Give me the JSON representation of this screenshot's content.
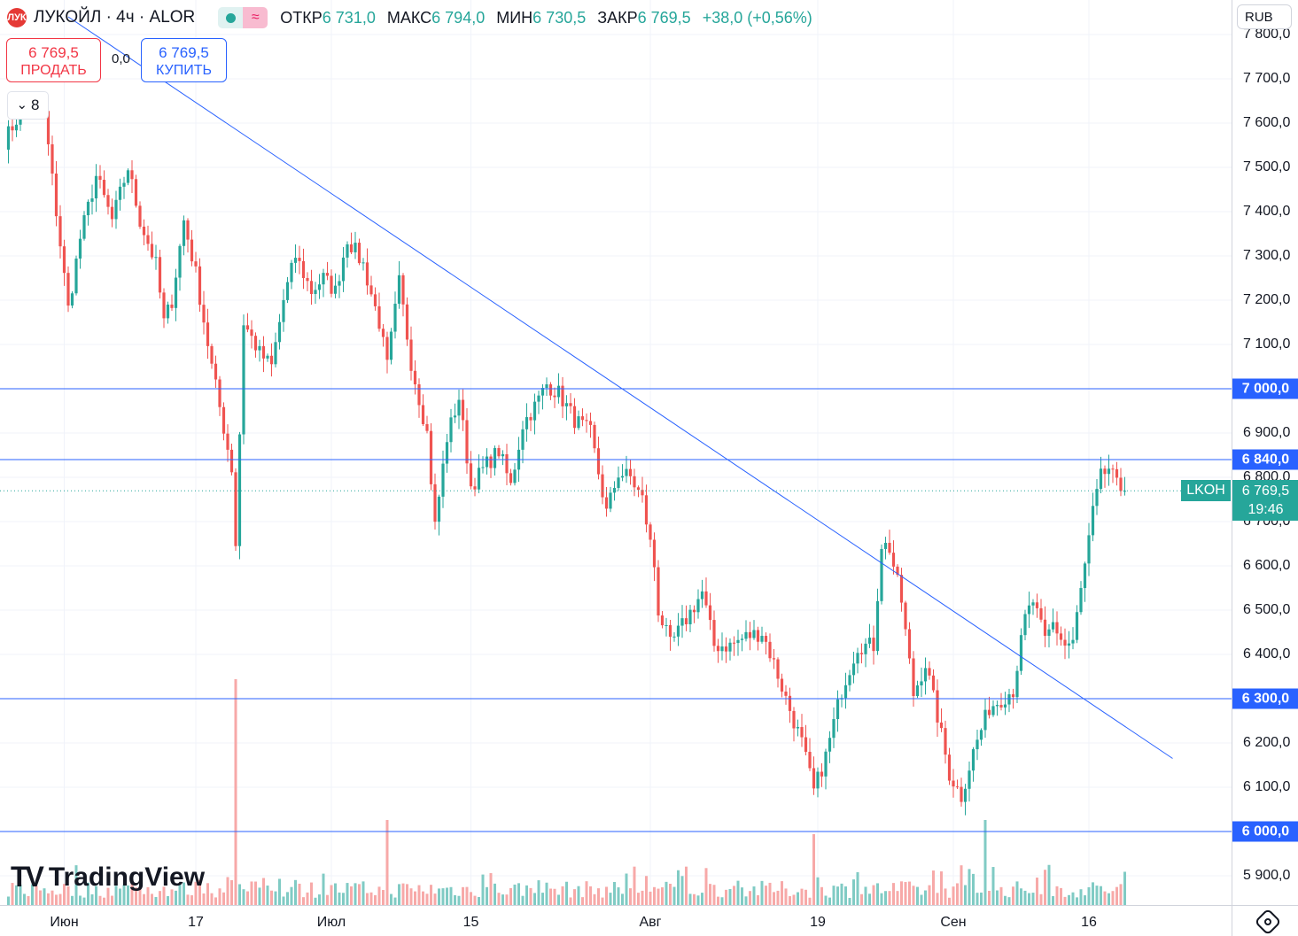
{
  "header": {
    "logo_text": "ЛУК",
    "title": "ЛУКОЙЛ · 4ч · ALOR",
    "live_icon": "green-dot-icon",
    "indicator_icon": "approx-wave-icon",
    "indicator_glyph": "≈",
    "ohlc": [
      {
        "key": "ОТКР",
        "value": "6 731,0"
      },
      {
        "key": "МАКС",
        "value": "6 794,0"
      },
      {
        "key": "МИН",
        "value": "6 730,5"
      },
      {
        "key": "ЗАКР",
        "value": "6 769,5"
      }
    ],
    "change": "+38,0 (+0,56%)"
  },
  "trade": {
    "sell_price": "6 769,5",
    "sell_label": "ПРОДАТЬ",
    "spread": "0,0",
    "buy_price": "6 769,5",
    "buy_label": "КУПИТЬ"
  },
  "collapse": {
    "icon": "chevron-down-icon",
    "glyph": "⌄",
    "count": "8"
  },
  "currency": "RUB",
  "brand": "TradingView",
  "colors": {
    "up": "#26a69a",
    "down": "#ef5350",
    "up_vol": "#80cbc4",
    "down_vol": "#f7a9a8",
    "level": "#2962ff",
    "grid": "#f0f3fa"
  },
  "chart_data": {
    "type": "candlestick",
    "symbol": "LKOH",
    "last_price": "6 769,5",
    "countdown": "19:46",
    "ylim": [
      5860,
      7900
    ],
    "y_ticks": [
      {
        "value": 7800,
        "label": "7 800,0"
      },
      {
        "value": 7700,
        "label": "7 700,0"
      },
      {
        "value": 7600,
        "label": "7 600,0"
      },
      {
        "value": 7500,
        "label": "7 500,0"
      },
      {
        "value": 7400,
        "label": "7 400,0"
      },
      {
        "value": 7300,
        "label": "7 300,0"
      },
      {
        "value": 7200,
        "label": "7 200,0"
      },
      {
        "value": 7100,
        "label": "7 100,0"
      },
      {
        "value": 7000,
        "label": "7 000,0"
      },
      {
        "value": 6900,
        "label": "6 900,0"
      },
      {
        "value": 6800,
        "label": "6 800,0"
      },
      {
        "value": 6700,
        "label": "6 700,0"
      },
      {
        "value": 6600,
        "label": "6 600,0"
      },
      {
        "value": 6500,
        "label": "6 500,0"
      },
      {
        "value": 6400,
        "label": "6 400,0"
      },
      {
        "value": 6300,
        "label": "6 300,0"
      },
      {
        "value": 6200,
        "label": "6 200,0"
      },
      {
        "value": 6100,
        "label": "6 100,0"
      },
      {
        "value": 6000,
        "label": "6 000,0"
      },
      {
        "value": 5900,
        "label": "5 900,0"
      }
    ],
    "x_ticks": [
      {
        "bar": 15,
        "label": "Июн"
      },
      {
        "bar": 48,
        "label": "17"
      },
      {
        "bar": 82,
        "label": "Июл"
      },
      {
        "bar": 117,
        "label": "15"
      },
      {
        "bar": 162,
        "label": "Авг"
      },
      {
        "bar": 204,
        "label": "19"
      },
      {
        "bar": 238,
        "label": "Сен"
      },
      {
        "bar": 272,
        "label": "16"
      }
    ],
    "levels": [
      {
        "value": 7000,
        "label": "7 000,0"
      },
      {
        "value": 6840,
        "label": "6 840,0"
      },
      {
        "value": 6300,
        "label": "6 300,0"
      },
      {
        "value": 6000,
        "label": "6 000,0"
      }
    ],
    "trendline": {
      "from": {
        "bar": 16,
        "price": 7840
      },
      "to": {
        "bar": 293,
        "price": 6165
      }
    },
    "anchors": [
      {
        "bar": 0,
        "price": 7560
      },
      {
        "bar": 5,
        "price": 7640
      },
      {
        "bar": 10,
        "price": 7620
      },
      {
        "bar": 13,
        "price": 7400
      },
      {
        "bar": 16,
        "price": 7180
      },
      {
        "bar": 19,
        "price": 7340
      },
      {
        "bar": 23,
        "price": 7480
      },
      {
        "bar": 27,
        "price": 7380
      },
      {
        "bar": 31,
        "price": 7500
      },
      {
        "bar": 34,
        "price": 7380
      },
      {
        "bar": 38,
        "price": 7280
      },
      {
        "bar": 40,
        "price": 7150
      },
      {
        "bar": 42,
        "price": 7200
      },
      {
        "bar": 45,
        "price": 7380
      },
      {
        "bar": 48,
        "price": 7260
      },
      {
        "bar": 52,
        "price": 7050
      },
      {
        "bar": 57,
        "price": 6820
      },
      {
        "bar": 58,
        "price": 6650
      },
      {
        "bar": 60,
        "price": 7150
      },
      {
        "bar": 64,
        "price": 7080
      },
      {
        "bar": 67,
        "price": 7050
      },
      {
        "bar": 70,
        "price": 7200
      },
      {
        "bar": 73,
        "price": 7300
      },
      {
        "bar": 77,
        "price": 7220
      },
      {
        "bar": 80,
        "price": 7250
      },
      {
        "bar": 83,
        "price": 7220
      },
      {
        "bar": 86,
        "price": 7340
      },
      {
        "bar": 90,
        "price": 7280
      },
      {
        "bar": 94,
        "price": 7150
      },
      {
        "bar": 96,
        "price": 7050
      },
      {
        "bar": 99,
        "price": 7240
      },
      {
        "bar": 102,
        "price": 7060
      },
      {
        "bar": 106,
        "price": 6900
      },
      {
        "bar": 108,
        "price": 6690
      },
      {
        "bar": 111,
        "price": 6890
      },
      {
        "bar": 114,
        "price": 6980
      },
      {
        "bar": 117,
        "price": 6780
      },
      {
        "bar": 121,
        "price": 6830
      },
      {
        "bar": 124,
        "price": 6860
      },
      {
        "bar": 127,
        "price": 6780
      },
      {
        "bar": 130,
        "price": 6920
      },
      {
        "bar": 133,
        "price": 6960
      },
      {
        "bar": 136,
        "price": 7010
      },
      {
        "bar": 139,
        "price": 6990
      },
      {
        "bar": 143,
        "price": 6930
      },
      {
        "bar": 147,
        "price": 6900
      },
      {
        "bar": 151,
        "price": 6720
      },
      {
        "bar": 154,
        "price": 6810
      },
      {
        "bar": 157,
        "price": 6800
      },
      {
        "bar": 160,
        "price": 6750
      },
      {
        "bar": 163,
        "price": 6600
      },
      {
        "bar": 164,
        "price": 6500
      },
      {
        "bar": 167,
        "price": 6420
      },
      {
        "bar": 171,
        "price": 6480
      },
      {
        "bar": 175,
        "price": 6540
      },
      {
        "bar": 178,
        "price": 6420
      },
      {
        "bar": 182,
        "price": 6420
      },
      {
        "bar": 186,
        "price": 6440
      },
      {
        "bar": 190,
        "price": 6450
      },
      {
        "bar": 193,
        "price": 6380
      },
      {
        "bar": 196,
        "price": 6300
      },
      {
        "bar": 200,
        "price": 6200
      },
      {
        "bar": 203,
        "price": 6090
      },
      {
        "bar": 206,
        "price": 6170
      },
      {
        "bar": 210,
        "price": 6320
      },
      {
        "bar": 214,
        "price": 6420
      },
      {
        "bar": 218,
        "price": 6420
      },
      {
        "bar": 220,
        "price": 6650
      },
      {
        "bar": 222,
        "price": 6640
      },
      {
        "bar": 225,
        "price": 6520
      },
      {
        "bar": 228,
        "price": 6310
      },
      {
        "bar": 231,
        "price": 6380
      },
      {
        "bar": 234,
        "price": 6260
      },
      {
        "bar": 237,
        "price": 6130
      },
      {
        "bar": 240,
        "price": 6080
      },
      {
        "bar": 243,
        "price": 6180
      },
      {
        "bar": 247,
        "price": 6280
      },
      {
        "bar": 250,
        "price": 6300
      },
      {
        "bar": 253,
        "price": 6320
      },
      {
        "bar": 256,
        "price": 6480
      },
      {
        "bar": 258,
        "price": 6520
      },
      {
        "bar": 261,
        "price": 6430
      },
      {
        "bar": 263,
        "price": 6470
      },
      {
        "bar": 266,
        "price": 6420
      },
      {
        "bar": 268,
        "price": 6430
      },
      {
        "bar": 271,
        "price": 6600
      },
      {
        "bar": 273,
        "price": 6720
      },
      {
        "bar": 275,
        "price": 6800
      },
      {
        "bar": 277,
        "price": 6820
      },
      {
        "bar": 279,
        "price": 6780
      },
      {
        "bar": 281,
        "price": 6769.5
      }
    ],
    "volume_spikes": [
      {
        "bar": 58,
        "value": 8
      },
      {
        "bar": 96,
        "value": 3
      },
      {
        "bar": 246,
        "value": 3
      },
      {
        "bar": 203,
        "value": 2.5
      }
    ]
  }
}
